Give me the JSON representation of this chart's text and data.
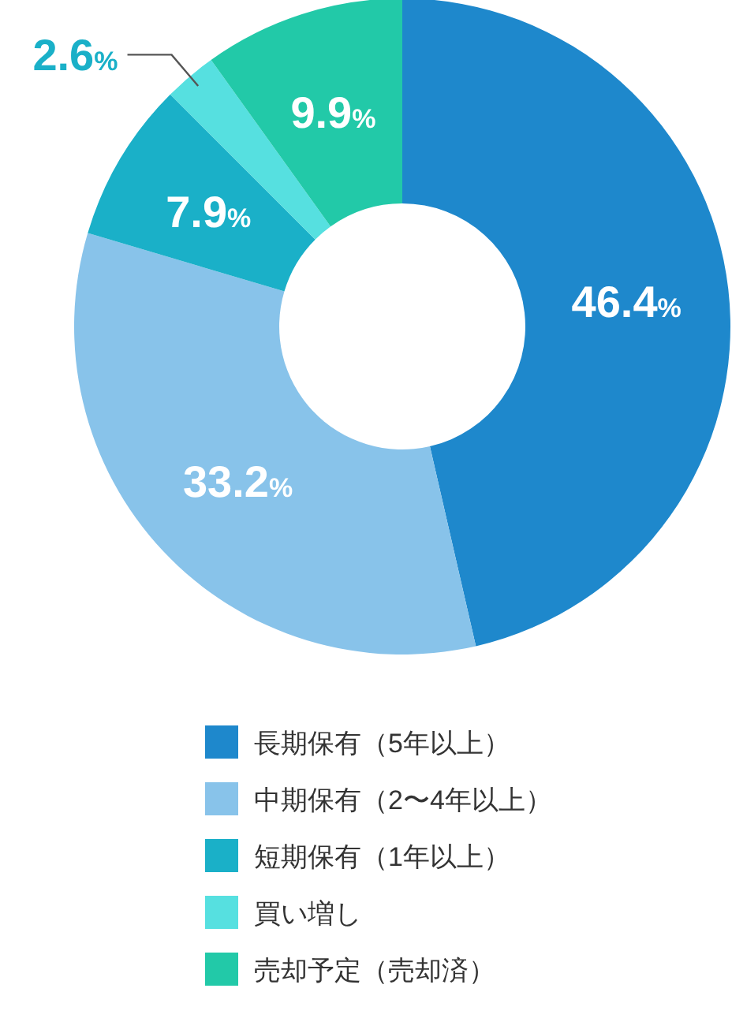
{
  "chart_data": {
    "type": "donut",
    "categories": [
      "長期保有（5年以上）",
      "中期保有（2〜4年以上）",
      "短期保有（1年以上）",
      "買い増し",
      "売却予定（売却済）"
    ],
    "values": [
      46.4,
      33.2,
      7.9,
      2.6,
      9.9
    ],
    "colors": [
      "#1e88cc",
      "#88c3ea",
      "#1ab0c8",
      "#56e0e0",
      "#22c9a8"
    ],
    "value_labels": [
      "46.4%",
      "33.2%",
      "7.9%",
      "2.6%",
      "9.9%"
    ],
    "legend": "bottom"
  }
}
